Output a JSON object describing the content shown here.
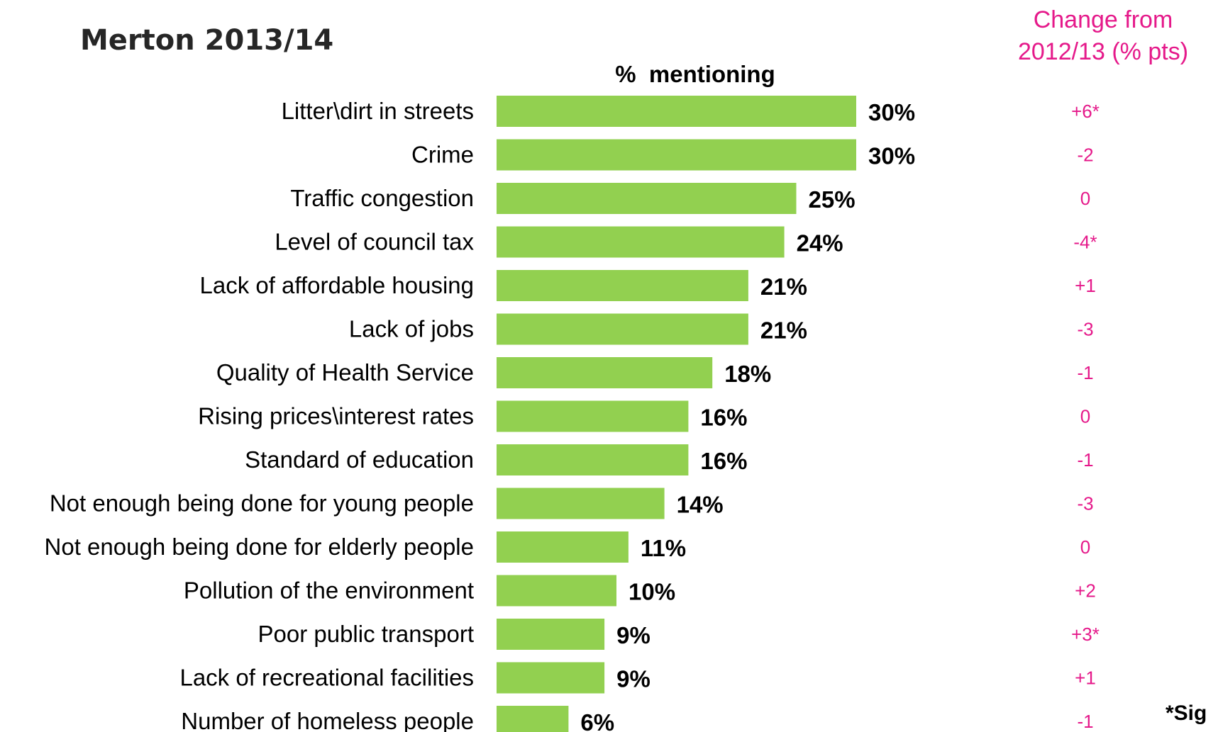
{
  "page": {
    "title": "Merton 2013/14",
    "change_header": [
      "Change from",
      "2012/13 (% pts)"
    ],
    "axis_header": "%  mentioning",
    "sig_note": "*Sig"
  },
  "colors": {
    "bar": "#92d050",
    "change": "#e5198a",
    "text": "#000000"
  },
  "chart_data": {
    "type": "bar",
    "orientation": "horizontal",
    "title": "Merton 2013/14",
    "xlabel": "%  mentioning",
    "ylabel": "",
    "xlim": [
      0,
      30
    ],
    "grid": false,
    "legend": "none",
    "categories": [
      "Litter\\dirt in streets",
      "Crime",
      "Traffic congestion",
      "Level of council tax",
      "Lack of affordable housing",
      "Lack of jobs",
      "Quality of Health Service",
      "Rising prices\\interest rates",
      "Standard of education",
      "Not enough being done for young people",
      "Not enough being done for elderly people",
      "Pollution of the environment",
      "Poor public transport",
      "Lack of recreational facilities",
      "Number of homeless people"
    ],
    "values": [
      30,
      30,
      25,
      24,
      21,
      21,
      18,
      16,
      16,
      14,
      11,
      10,
      9,
      9,
      6
    ],
    "value_labels": [
      "30%",
      "30%",
      "25%",
      "24%",
      "21%",
      "21%",
      "18%",
      "16%",
      "16%",
      "14%",
      "11%",
      "10%",
      "9%",
      "9%",
      "6%"
    ],
    "change_labels": [
      "+6*",
      "-2",
      "0",
      "-4*",
      "+1",
      "-3",
      "-1",
      "0",
      "-1",
      "-3",
      "0",
      "+2",
      "+3*",
      "+1",
      "-1"
    ]
  }
}
